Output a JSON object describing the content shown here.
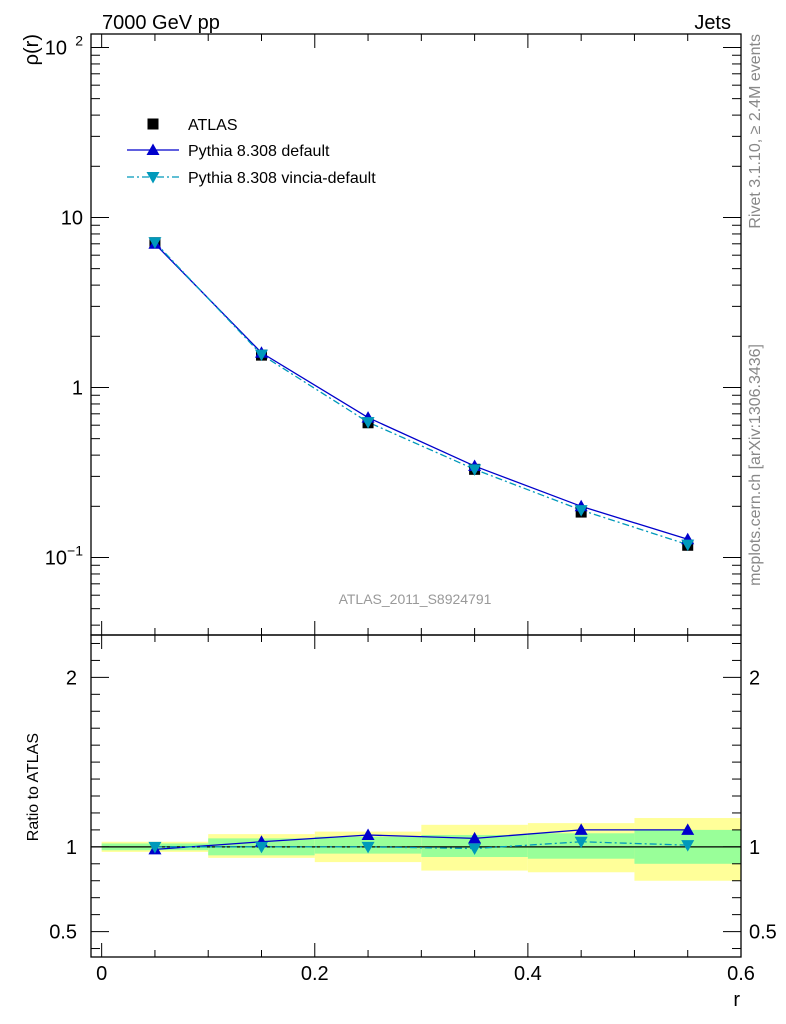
{
  "header": {
    "left": "7000 GeV pp",
    "right": "Jets"
  },
  "side_text": {
    "top": "Rivet 3.1.10, ≥ 2.4M events",
    "bottom": "mcplots.cern.ch [arXiv:1306.3436]"
  },
  "watermark": "ATLAS_2011_S8924791",
  "legend": {
    "items": [
      {
        "label": "ATLAS",
        "marker": "square",
        "color": "#000000"
      },
      {
        "label": "Pythia 8.308 default",
        "marker": "triangle-up",
        "color": "#0000cc"
      },
      {
        "label": "Pythia 8.308 vincia-default",
        "marker": "triangle-down",
        "color": "#0099bb"
      }
    ],
    "placement": "top-left"
  },
  "colors": {
    "band_inner": "#99ff99",
    "band_outer": "#ffff99",
    "default": "#0000cc",
    "vincia": "#0099bb",
    "data": "#000000"
  },
  "chart_data": [
    {
      "type": "line",
      "xlabel": "",
      "ylabel": "ρ(r)",
      "yscale": "log",
      "xlim": [
        -0.01,
        0.6
      ],
      "ylim": [
        0.035,
        120
      ],
      "y_ticks": [
        {
          "label": "10",
          "sup": "−1"
        },
        {
          "label": "1",
          "sup": ""
        },
        {
          "label": "10",
          "sup": ""
        },
        {
          "label": "10",
          "sup": "2"
        }
      ],
      "x": [
        0.05,
        0.15,
        0.25,
        0.35,
        0.45,
        0.55
      ],
      "series": [
        {
          "name": "ATLAS",
          "values": [
            7.1,
            1.55,
            0.62,
            0.33,
            0.185,
            0.118
          ]
        },
        {
          "name": "Pythia 8.308 default",
          "values": [
            7.0,
            1.6,
            0.665,
            0.345,
            0.2,
            0.128
          ]
        },
        {
          "name": "Pythia 8.308 vincia-default",
          "values": [
            7.15,
            1.56,
            0.625,
            0.33,
            0.19,
            0.119
          ]
        }
      ]
    },
    {
      "type": "line",
      "xlabel": "r",
      "ylabel": "Ratio to ATLAS",
      "xlim": [
        -0.01,
        0.6
      ],
      "ylim": [
        0.35,
        2.25
      ],
      "x_ticks": [
        "0",
        "0.2",
        "0.4",
        "0.6"
      ],
      "y_ticks": [
        "0.5",
        "1",
        "2"
      ],
      "bins": [
        [
          0.0,
          0.1
        ],
        [
          0.1,
          0.2
        ],
        [
          0.2,
          0.3
        ],
        [
          0.3,
          0.4
        ],
        [
          0.4,
          0.5
        ],
        [
          0.5,
          0.6
        ]
      ],
      "band_inner": [
        [
          0.98,
          1.02
        ],
        [
          0.95,
          1.05
        ],
        [
          0.96,
          1.06
        ],
        [
          0.94,
          1.07
        ],
        [
          0.93,
          1.08
        ],
        [
          0.9,
          1.1
        ]
      ],
      "band_outer": [
        [
          0.97,
          1.03
        ],
        [
          0.935,
          1.075
        ],
        [
          0.91,
          1.09
        ],
        [
          0.86,
          1.13
        ],
        [
          0.85,
          1.14
        ],
        [
          0.8,
          1.17
        ]
      ],
      "x": [
        0.05,
        0.15,
        0.25,
        0.35,
        0.45,
        0.55
      ],
      "series": [
        {
          "name": "Pythia 8.308 default",
          "values": [
            0.985,
            1.03,
            1.07,
            1.05,
            1.1,
            1.1
          ]
        },
        {
          "name": "Pythia 8.308 vincia-default",
          "values": [
            1.0,
            1.0,
            1.0,
            0.99,
            1.03,
            1.01
          ]
        }
      ]
    }
  ]
}
